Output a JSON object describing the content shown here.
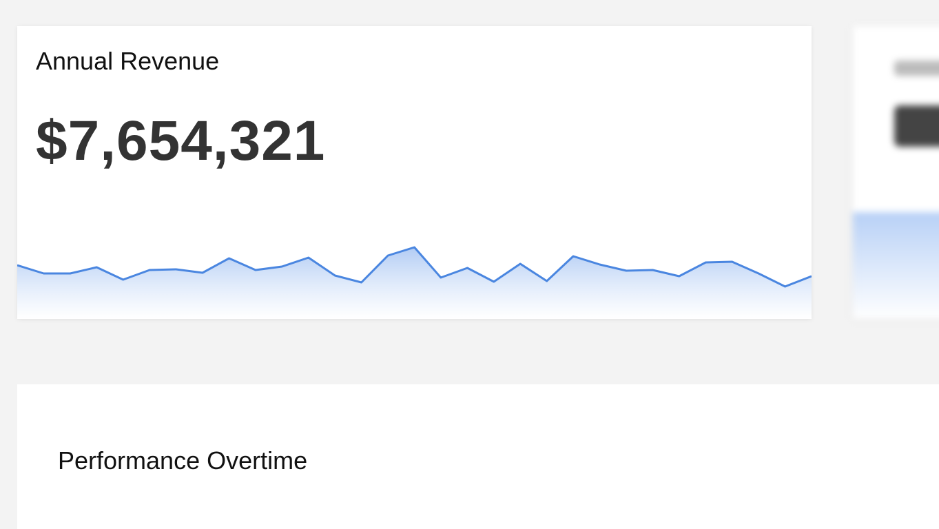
{
  "cards": [
    {
      "title": "Annual Revenue",
      "value": "$7,654,321",
      "sparkline": {
        "type": "line",
        "color": "#4a86e0",
        "ylim": [
          0,
          140
        ],
        "values": [
          78,
          66,
          66,
          75,
          57,
          71,
          72,
          67,
          88,
          71,
          76,
          89,
          63,
          53,
          92,
          104,
          60,
          74,
          54,
          80,
          55,
          91,
          79,
          70,
          71,
          62,
          82,
          83,
          66,
          47,
          62
        ]
      }
    }
  ],
  "panel": {
    "title": "Performance Overtime"
  }
}
